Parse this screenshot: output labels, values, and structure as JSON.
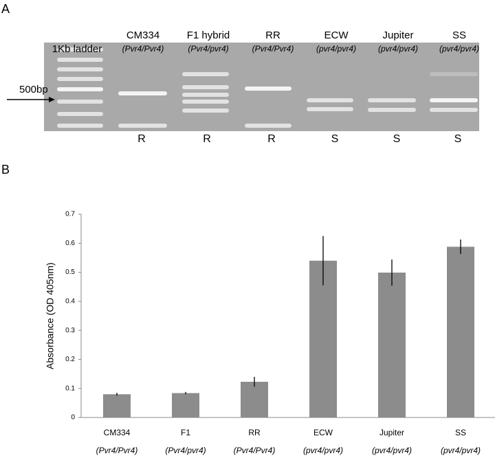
{
  "panel_a": {
    "label": "A",
    "ladder_label": "1Kb ladder",
    "size_marker": "500bp",
    "lanes": [
      {
        "name": "CM334",
        "genotype": "(Pvr4/Pvr4)",
        "call": "R"
      },
      {
        "name": "F1 hybrid",
        "genotype": "(Pvr4/pvr4)",
        "call": "R"
      },
      {
        "name": "RR",
        "genotype": "(Pvr4/Pvr4)",
        "call": "R"
      },
      {
        "name": "ECW",
        "genotype": "(pvr4/pvr4)",
        "call": "S"
      },
      {
        "name": "Jupiter",
        "genotype": "(pvr4/pvr4)",
        "call": "S"
      },
      {
        "name": "SS",
        "genotype": "(pvr4/pvr4)",
        "call": "S"
      }
    ]
  },
  "chart_data": {
    "type": "bar",
    "panel_label": "B",
    "y_label": "Absorbance (OD 405nm)",
    "categories": [
      "CM334",
      "F1",
      "RR",
      "ECW",
      "Jupiter",
      "SS"
    ],
    "category_notes": [
      "(Pvr4/Pvr4)",
      "(Pvr4/pvr4)",
      "(Pvr4/Pvr4)",
      "(pvr4/pvr4)",
      "(pvr4/pvr4)",
      "(pvr4/pvr4)"
    ],
    "values": [
      0.08,
      0.084,
      0.123,
      0.54,
      0.499,
      0.588
    ],
    "errors": [
      0.005,
      0.004,
      0.017,
      0.085,
      0.045,
      0.025
    ],
    "color": "#8c8c8c",
    "ylim": [
      0,
      0.7
    ],
    "yticks": [
      0,
      0.1,
      0.2,
      0.3,
      0.4,
      0.5,
      0.6,
      0.7
    ],
    "grid": false
  }
}
